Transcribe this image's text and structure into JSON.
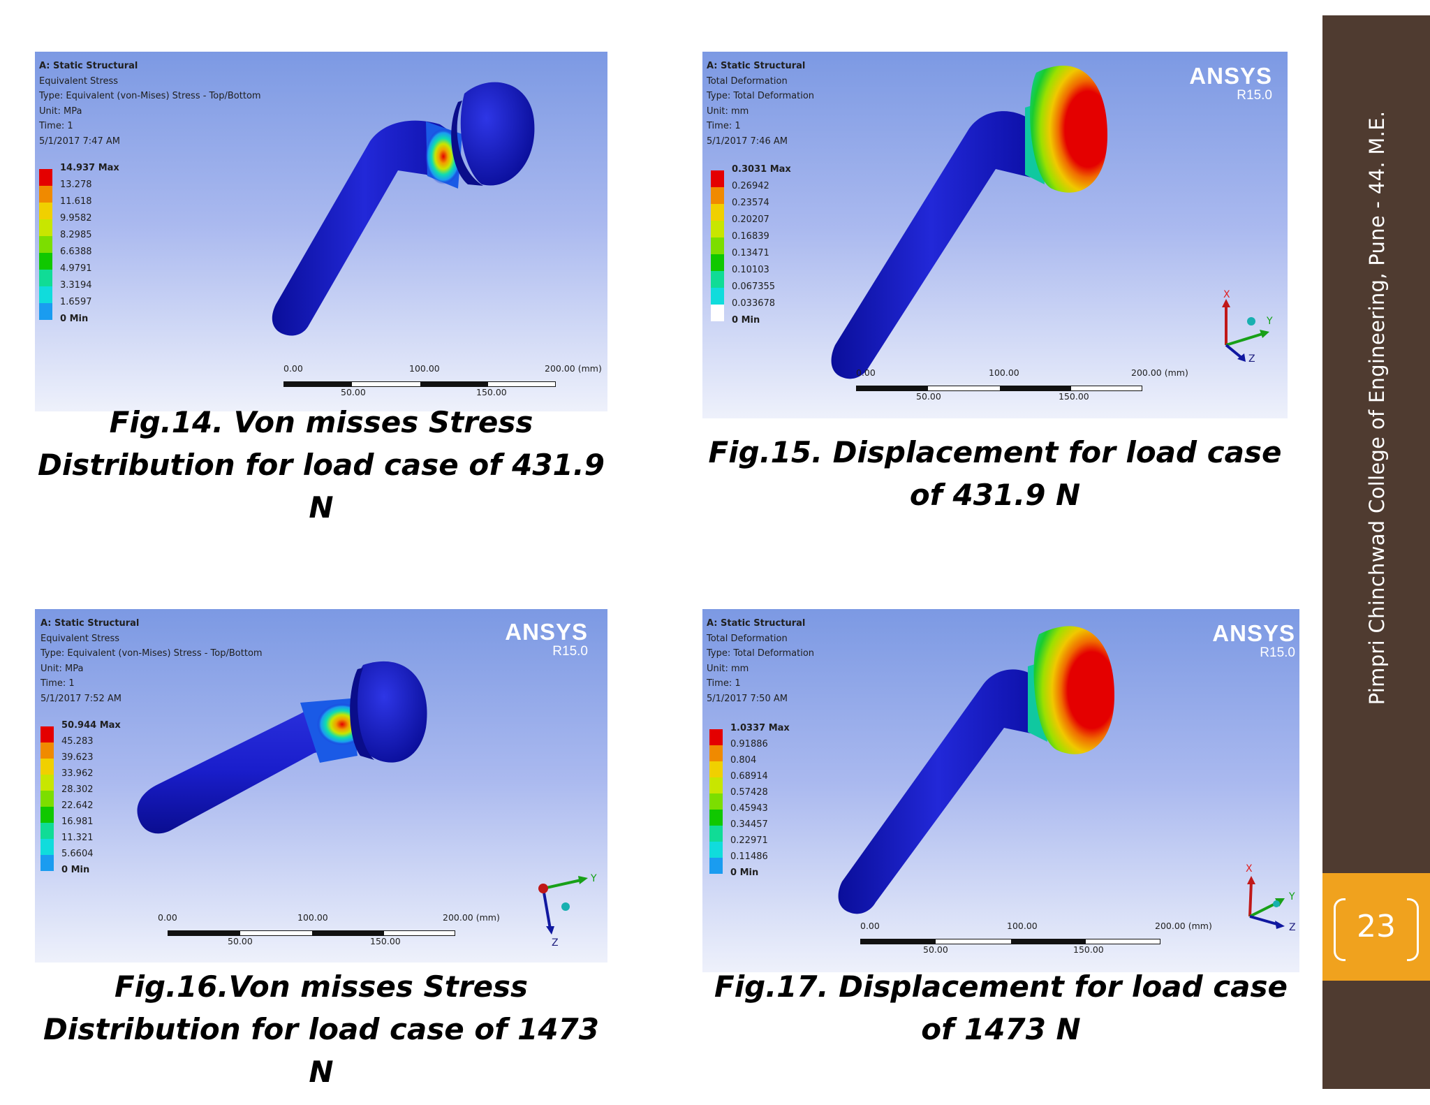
{
  "colors": {
    "sidebar": "#4f3b30",
    "page_badge": "#f0a21e",
    "bone_blue": "#1a1ecc",
    "legend": [
      "#e40000",
      "#f08a00",
      "#f0d000",
      "#c8e600",
      "#7cde00",
      "#10c800",
      "#10dc96",
      "#10dcdc",
      "#1a9cf0",
      "#1414dc"
    ]
  },
  "sidebar": {
    "institution": "Pimpri Chinchwad College of Engineering, Pune - 44. M.E.",
    "page_number": "23"
  },
  "figures": [
    {
      "header": "A: Static Structural",
      "result": "Equivalent Stress",
      "type": "Type: Equivalent (von-Mises) Stress - Top/Bottom",
      "unit": "Unit: MPa",
      "time": "Time: 1",
      "date": "5/1/2017 7:47 AM",
      "legend": [
        "14.937 Max",
        "13.278",
        "11.618",
        "9.9582",
        "8.2985",
        "6.6388",
        "4.9791",
        "3.3194",
        "1.6597",
        "0 Min"
      ],
      "scale_top": [
        "0.00",
        "100.00",
        "200.00 (mm)"
      ],
      "scale_bottom": [
        "50.00",
        "150.00"
      ],
      "caption": [
        "Fig.14. Von misses Stress",
        "Distribution for load case of 431.9",
        "N"
      ]
    },
    {
      "header": "A: Static Structural",
      "result": "Total Deformation",
      "type": "Type: Total Deformation",
      "unit": "Unit: mm",
      "time": "Time: 1",
      "date": "5/1/2017 7:46 AM",
      "logo": "ANSYS",
      "version": "R15.0",
      "legend": [
        "0.3031 Max",
        "0.26942",
        "0.23574",
        "0.20207",
        "0.16839",
        "0.13471",
        "0.10103",
        "0.067355",
        "0.033678",
        "0 Min"
      ],
      "scale_top": [
        "0.00",
        "100.00",
        "200.00 (mm)"
      ],
      "scale_bottom": [
        "50.00",
        "150.00"
      ],
      "axes": [
        "X",
        "Y",
        "Z"
      ],
      "caption": [
        "Fig.15. Displacement for load case",
        "of 431.9 N"
      ]
    },
    {
      "header": "A: Static Structural",
      "result": "Equivalent Stress",
      "type": "Type: Equivalent (von-Mises) Stress - Top/Bottom",
      "unit": "Unit: MPa",
      "time": "Time: 1",
      "date": "5/1/2017 7:52 AM",
      "logo": "ANSYS",
      "version": "R15.0",
      "legend": [
        "50.944 Max",
        "45.283",
        "39.623",
        "33.962",
        "28.302",
        "22.642",
        "16.981",
        "11.321",
        "5.6604",
        "0 Min"
      ],
      "scale_top": [
        "0.00",
        "100.00",
        "200.00 (mm)"
      ],
      "scale_bottom": [
        "50.00",
        "150.00"
      ],
      "axes": [
        "Y",
        "Z"
      ],
      "caption": [
        "Fig.16.Von misses Stress",
        "Distribution for load case of 1473 N"
      ]
    },
    {
      "header": "A: Static Structural",
      "result": "Total Deformation",
      "type": "Type: Total Deformation",
      "unit": "Unit: mm",
      "time": "Time: 1",
      "date": "5/1/2017 7:50 AM",
      "logo": "ANSYS",
      "version": "R15.0",
      "legend": [
        "1.0337 Max",
        "0.91886",
        "0.804",
        "0.68914",
        "0.57428",
        "0.45943",
        "0.34457",
        "0.22971",
        "0.11486",
        "0 Min"
      ],
      "scale_top": [
        "0.00",
        "100.00",
        "200.00 (mm)"
      ],
      "scale_bottom": [
        "50.00",
        "150.00"
      ],
      "axes": [
        "X",
        "Y",
        "Z"
      ],
      "caption": [
        "Fig.17. Displacement for load case",
        "of 1473 N"
      ]
    }
  ]
}
